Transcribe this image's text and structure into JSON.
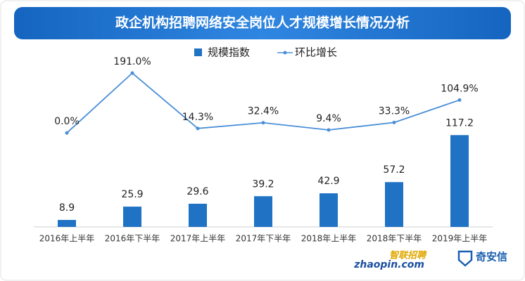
{
  "chart_data": {
    "type": "bar_line",
    "title": "政企机构招聘网络安全岗位人才规模增长情况分析",
    "categories": [
      "2016年上半年",
      "2016年下半年",
      "2017年上半年",
      "2017年下半年",
      "2018年上半年",
      "2018年下半年",
      "2019年上半年"
    ],
    "series": [
      {
        "name": "规模指数",
        "type": "bar",
        "color": "#1f72c4",
        "values": [
          8.9,
          25.9,
          29.6,
          39.2,
          42.9,
          57.2,
          117.2
        ]
      },
      {
        "name": "环比增长",
        "type": "line",
        "axis": "y2",
        "color": "#4a8fd8",
        "values": [
          0.0,
          191.0,
          14.3,
          32.4,
          9.4,
          33.3,
          104.9
        ],
        "value_labels": [
          "0.0%",
          "191.0%",
          "14.3%",
          "32.4%",
          "9.4%",
          "33.3%",
          "104.9%"
        ]
      }
    ],
    "ylim": [
      0,
      200
    ],
    "y2lim": [
      -300,
      200
    ],
    "legend": "top"
  },
  "footer": {
    "brand_1": "智联招聘",
    "brand_1_site": "zhaopin.com",
    "brand_2": "奇安信"
  }
}
